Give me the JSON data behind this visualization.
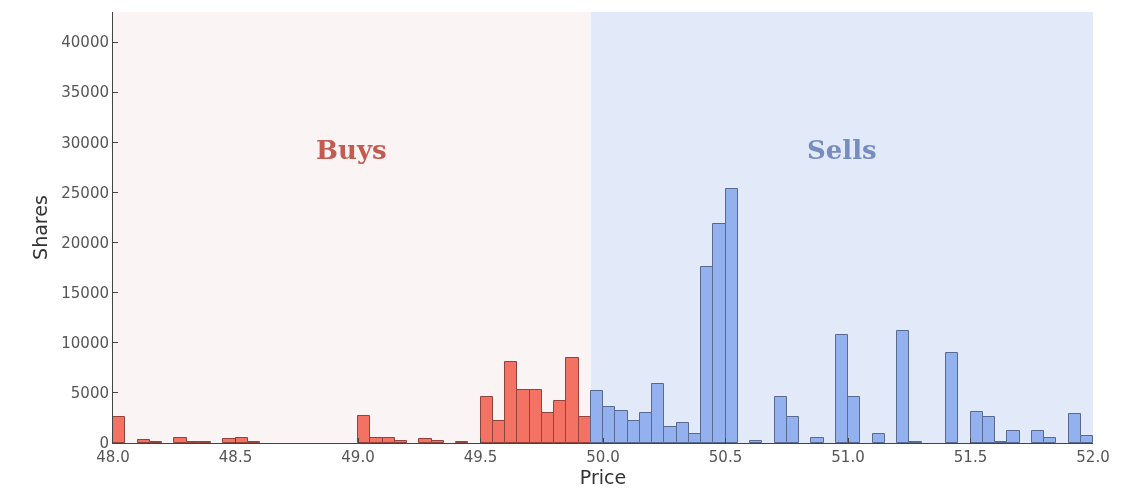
{
  "chart_data": {
    "type": "histogram",
    "xlabel": "Price",
    "ylabel": "Shares",
    "bins": [
      48.0,
      48.05,
      48.1,
      48.15,
      48.2,
      48.25,
      48.3,
      48.35,
      48.4,
      48.45,
      48.5,
      48.55,
      48.6,
      48.65,
      48.7,
      48.75,
      48.8,
      48.85,
      48.9,
      48.95,
      49.0,
      49.05,
      49.1,
      49.15,
      49.2,
      49.25,
      49.3,
      49.35,
      49.4,
      49.45,
      49.5,
      49.55,
      49.6,
      49.65,
      49.7,
      49.75,
      49.8,
      49.85,
      49.9,
      49.95,
      50.0,
      50.05,
      50.1,
      50.15,
      50.2,
      50.25,
      50.3,
      50.35,
      50.4,
      50.45,
      50.5,
      50.55,
      50.6,
      50.65,
      50.7,
      50.75,
      50.8,
      50.85,
      50.9,
      50.95,
      51.0,
      51.05,
      51.1,
      51.15,
      51.2,
      51.25,
      51.3,
      51.35,
      51.4,
      51.45,
      51.5,
      51.55,
      51.6,
      51.65,
      51.7,
      51.75,
      51.8,
      51.85,
      51.9,
      51.95,
      52.0
    ],
    "values": [
      2600,
      0,
      300,
      100,
      0,
      500,
      100,
      100,
      0,
      400,
      500,
      100,
      0,
      0,
      0,
      0,
      0,
      0,
      0,
      0,
      2700,
      500,
      500,
      200,
      0,
      400,
      200,
      0,
      100,
      0,
      4600,
      2200,
      8100,
      5300,
      5300,
      3000,
      4200,
      8500,
      2600,
      5200,
      3600,
      3200,
      2200,
      3000,
      5900,
      1600,
      2000,
      900,
      17600,
      21800,
      25300,
      0,
      200,
      0,
      4600,
      2600,
      0,
      500,
      0,
      10800,
      4600,
      0,
      900,
      0,
      11200,
      100,
      0,
      0,
      9000,
      0,
      3100,
      2600,
      100,
      1200,
      0,
      1200,
      500,
      0,
      2900,
      700
    ],
    "colors": [
      "#f47264",
      "#f47264",
      "#f47264",
      "#f47264",
      "#f47264",
      "#f47264",
      "#f47264",
      "#f47264",
      "#f47264",
      "#f47264",
      "#f47264",
      "#f47264",
      "#f47264",
      "#f47264",
      "#f47264",
      "#f47264",
      "#f47264",
      "#f47264",
      "#f47264",
      "#f47264",
      "#f47264",
      "#f47264",
      "#f47264",
      "#f47264",
      "#f47264",
      "#f47264",
      "#f47264",
      "#f47264",
      "#f47264",
      "#f47264",
      "#f47264",
      "#f47264",
      "#f47264",
      "#f47264",
      "#f47264",
      "#f47264",
      "#f47264",
      "#f47264",
      "#f47264",
      "#93b0ef",
      "#93b0ef",
      "#93b0ef",
      "#93b0ef",
      "#93b0ef",
      "#93b0ef",
      "#93b0ef",
      "#93b0ef",
      "#93b0ef",
      "#93b0ef",
      "#93b0ef",
      "#93b0ef",
      "#93b0ef",
      "#93b0ef",
      "#93b0ef",
      "#93b0ef",
      "#93b0ef",
      "#93b0ef",
      "#93b0ef",
      "#93b0ef",
      "#93b0ef",
      "#93b0ef",
      "#93b0ef",
      "#93b0ef",
      "#93b0ef",
      "#93b0ef",
      "#93b0ef",
      "#93b0ef",
      "#93b0ef",
      "#93b0ef",
      "#93b0ef",
      "#93b0ef",
      "#93b0ef",
      "#93b0ef",
      "#93b0ef",
      "#93b0ef",
      "#93b0ef",
      "#93b0ef",
      "#93b0ef",
      "#93b0ef",
      "#93b0ef"
    ],
    "xlim": [
      48.0,
      52.0
    ],
    "xticks": [
      {
        "value": 48,
        "label": "48.0"
      },
      48.5,
      {
        "value": 49,
        "label": "49.0"
      },
      49.5,
      {
        "value": 50,
        "label": "50.0"
      },
      50.5,
      {
        "value": 51,
        "label": "51.0"
      },
      51.5,
      {
        "value": 52,
        "label": "52.0"
      }
    ],
    "ylim": [
      0,
      43000
    ],
    "yticks": [
      0,
      5000,
      10000,
      15000,
      20000,
      25000,
      30000,
      35000,
      40000
    ],
    "grid": false,
    "bands": [
      {
        "axis": "x",
        "from": 48.0,
        "to": 49.95,
        "label": "Buys",
        "color": "#faf4f4"
      },
      {
        "axis": "x",
        "from": 49.95,
        "to": 52.0,
        "label": "Sells",
        "color": "#e2eaf9"
      }
    ]
  }
}
